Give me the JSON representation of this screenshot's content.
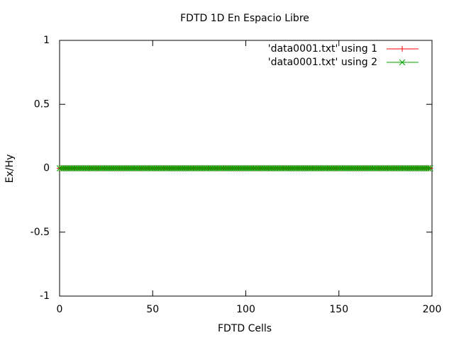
{
  "chart_data": {
    "type": "line",
    "title": "FDTD 1D En Espacio Libre",
    "x_label": "FDTD Cells",
    "y_label": "Ex/Hy",
    "x": [
      0,
      1,
      2,
      3,
      4,
      5,
      6,
      7,
      8,
      9,
      10,
      11,
      12,
      13,
      14,
      15,
      16,
      17,
      18,
      19,
      20,
      21,
      22,
      23,
      24,
      25,
      26,
      27,
      28,
      29,
      30,
      31,
      32,
      33,
      34,
      35,
      36,
      37,
      38,
      39,
      40,
      41,
      42,
      43,
      44,
      45,
      46,
      47,
      48,
      49,
      50,
      51,
      52,
      53,
      54,
      55,
      56,
      57,
      58,
      59,
      60,
      61,
      62,
      63,
      64,
      65,
      66,
      67,
      68,
      69,
      70,
      71,
      72,
      73,
      74,
      75,
      76,
      77,
      78,
      79,
      80,
      81,
      82,
      83,
      84,
      85,
      86,
      87,
      88,
      89,
      90,
      91,
      92,
      93,
      94,
      95,
      96,
      97,
      98,
      99,
      100,
      101,
      102,
      103,
      104,
      105,
      106,
      107,
      108,
      109,
      110,
      111,
      112,
      113,
      114,
      115,
      116,
      117,
      118,
      119,
      120,
      121,
      122,
      123,
      124,
      125,
      126,
      127,
      128,
      129,
      130,
      131,
      132,
      133,
      134,
      135,
      136,
      137,
      138,
      139,
      140,
      141,
      142,
      143,
      144,
      145,
      146,
      147,
      148,
      149,
      150,
      151,
      152,
      153,
      154,
      155,
      156,
      157,
      158,
      159,
      160,
      161,
      162,
      163,
      164,
      165,
      166,
      167,
      168,
      169,
      170,
      171,
      172,
      173,
      174,
      175,
      176,
      177,
      178,
      179,
      180,
      181,
      182,
      183,
      184,
      185,
      186,
      187,
      188,
      189,
      190,
      191,
      192,
      193,
      194,
      195,
      196,
      197,
      198,
      199
    ],
    "series": [
      {
        "name": "'data0001.txt' using 1",
        "color": "#ff0000",
        "marker": "+",
        "values": [
          0,
          0,
          0,
          0,
          0,
          0,
          0,
          0,
          0,
          0,
          0,
          0,
          0,
          0,
          0,
          0,
          0,
          0,
          0,
          0,
          0,
          0,
          0,
          0,
          0,
          0,
          0,
          0,
          0,
          0,
          0,
          0,
          0,
          0,
          0,
          0,
          0,
          0,
          0,
          0,
          0,
          0,
          0,
          0,
          0,
          0,
          0,
          0,
          0,
          0,
          0,
          0,
          0,
          0,
          0,
          0,
          0,
          0,
          0,
          0,
          0,
          0,
          0,
          0,
          0,
          0,
          0,
          0,
          0,
          0,
          0,
          0,
          0,
          0,
          0,
          0,
          0,
          0,
          0,
          0,
          0,
          0,
          0,
          0,
          0,
          0,
          0,
          0,
          0,
          0,
          0,
          0,
          0,
          0,
          0,
          0,
          0,
          0,
          0,
          0,
          0,
          0,
          0,
          0,
          0,
          0,
          0,
          0,
          0,
          0,
          0,
          0,
          0,
          0,
          0,
          0,
          0,
          0,
          0,
          0,
          0,
          0,
          0,
          0,
          0,
          0,
          0,
          0,
          0,
          0,
          0,
          0,
          0,
          0,
          0,
          0,
          0,
          0,
          0,
          0,
          0,
          0,
          0,
          0,
          0,
          0,
          0,
          0,
          0,
          0,
          0,
          0,
          0,
          0,
          0,
          0,
          0,
          0,
          0,
          0,
          0,
          0,
          0,
          0,
          0,
          0,
          0,
          0,
          0,
          0,
          0,
          0,
          0,
          0,
          0,
          0,
          0,
          0,
          0,
          0,
          0,
          0,
          0,
          0,
          0,
          0,
          0,
          0,
          0,
          0,
          0,
          0,
          0,
          0,
          0,
          0,
          0,
          0,
          0,
          0
        ]
      },
      {
        "name": "'data0001.txt' using 2",
        "color": "#00a000",
        "marker": "x",
        "values": [
          0,
          0,
          0,
          0,
          0,
          0,
          0,
          0,
          0,
          0,
          0,
          0,
          0,
          0,
          0,
          0,
          0,
          0,
          0,
          0,
          0,
          0,
          0,
          0,
          0,
          0,
          0,
          0,
          0,
          0,
          0,
          0,
          0,
          0,
          0,
          0,
          0,
          0,
          0,
          0,
          0,
          0,
          0,
          0,
          0,
          0,
          0,
          0,
          0,
          0,
          0,
          0,
          0,
          0,
          0,
          0,
          0,
          0,
          0,
          0,
          0,
          0,
          0,
          0,
          0,
          0,
          0,
          0,
          0,
          0,
          0,
          0,
          0,
          0,
          0,
          0,
          0,
          0,
          0,
          0,
          0,
          0,
          0,
          0,
          0,
          0,
          0,
          0,
          0,
          0,
          0,
          0,
          0,
          0,
          0,
          0,
          0,
          0,
          0,
          0,
          0,
          0,
          0,
          0,
          0,
          0,
          0,
          0,
          0,
          0,
          0,
          0,
          0,
          0,
          0,
          0,
          0,
          0,
          0,
          0,
          0,
          0,
          0,
          0,
          0,
          0,
          0,
          0,
          0,
          0,
          0,
          0,
          0,
          0,
          0,
          0,
          0,
          0,
          0,
          0,
          0,
          0,
          0,
          0,
          0,
          0,
          0,
          0,
          0,
          0,
          0,
          0,
          0,
          0,
          0,
          0,
          0,
          0,
          0,
          0,
          0,
          0,
          0,
          0,
          0,
          0,
          0,
          0,
          0,
          0,
          0,
          0,
          0,
          0,
          0,
          0,
          0,
          0,
          0,
          0,
          0,
          0,
          0,
          0,
          0,
          0,
          0,
          0,
          0,
          0,
          0,
          0,
          0,
          0,
          0,
          0,
          0,
          0,
          0,
          0
        ]
      }
    ],
    "xlim": [
      0,
      200
    ],
    "xticks": [
      0,
      50,
      100,
      150,
      200
    ],
    "ylim": [
      -1,
      1
    ],
    "yticks": [
      -1,
      -0.5,
      0,
      0.5,
      1
    ],
    "grid": false,
    "legend": "top-right"
  }
}
